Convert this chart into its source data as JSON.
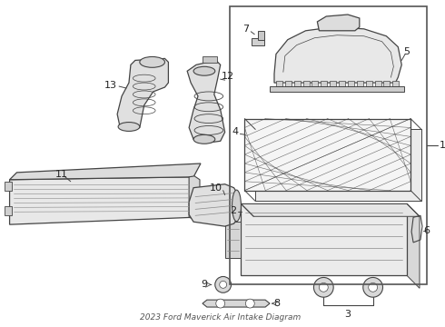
{
  "bg_color": "#ffffff",
  "line_color": "#444444",
  "fig_width": 4.9,
  "fig_height": 3.6,
  "dpi": 100,
  "subtitle": "2023 Ford Maverick Air Intake Diagram"
}
